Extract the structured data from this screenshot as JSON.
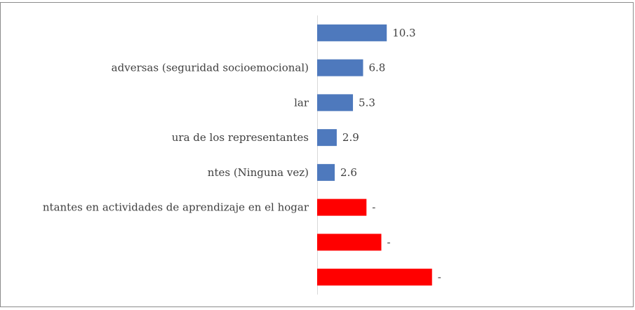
{
  "chart_data": {
    "type": "barh",
    "categories": [
      null,
      "adversas (seguridad socioemocional)",
      "lar",
      "ura de los representantes",
      "ntes (Ninguna vez)",
      "ntantes en actividades de aprendizaje en el hogar",
      null,
      null
    ],
    "values": [
      10.3,
      6.8,
      5.3,
      2.9,
      2.6,
      7.3,
      9.5,
      17.0
    ],
    "value_labels": [
      "10.3",
      "6.8",
      "5.3",
      "2.9",
      "2.6",
      "-",
      "-",
      "-"
    ],
    "colors": [
      "#4e79bd",
      "#4e79bd",
      "#4e79bd",
      "#4e79bd",
      "#4e79bd",
      "#ff0000",
      "#ff0000",
      "#ff0000"
    ],
    "xlim": [
      0,
      46
    ]
  }
}
